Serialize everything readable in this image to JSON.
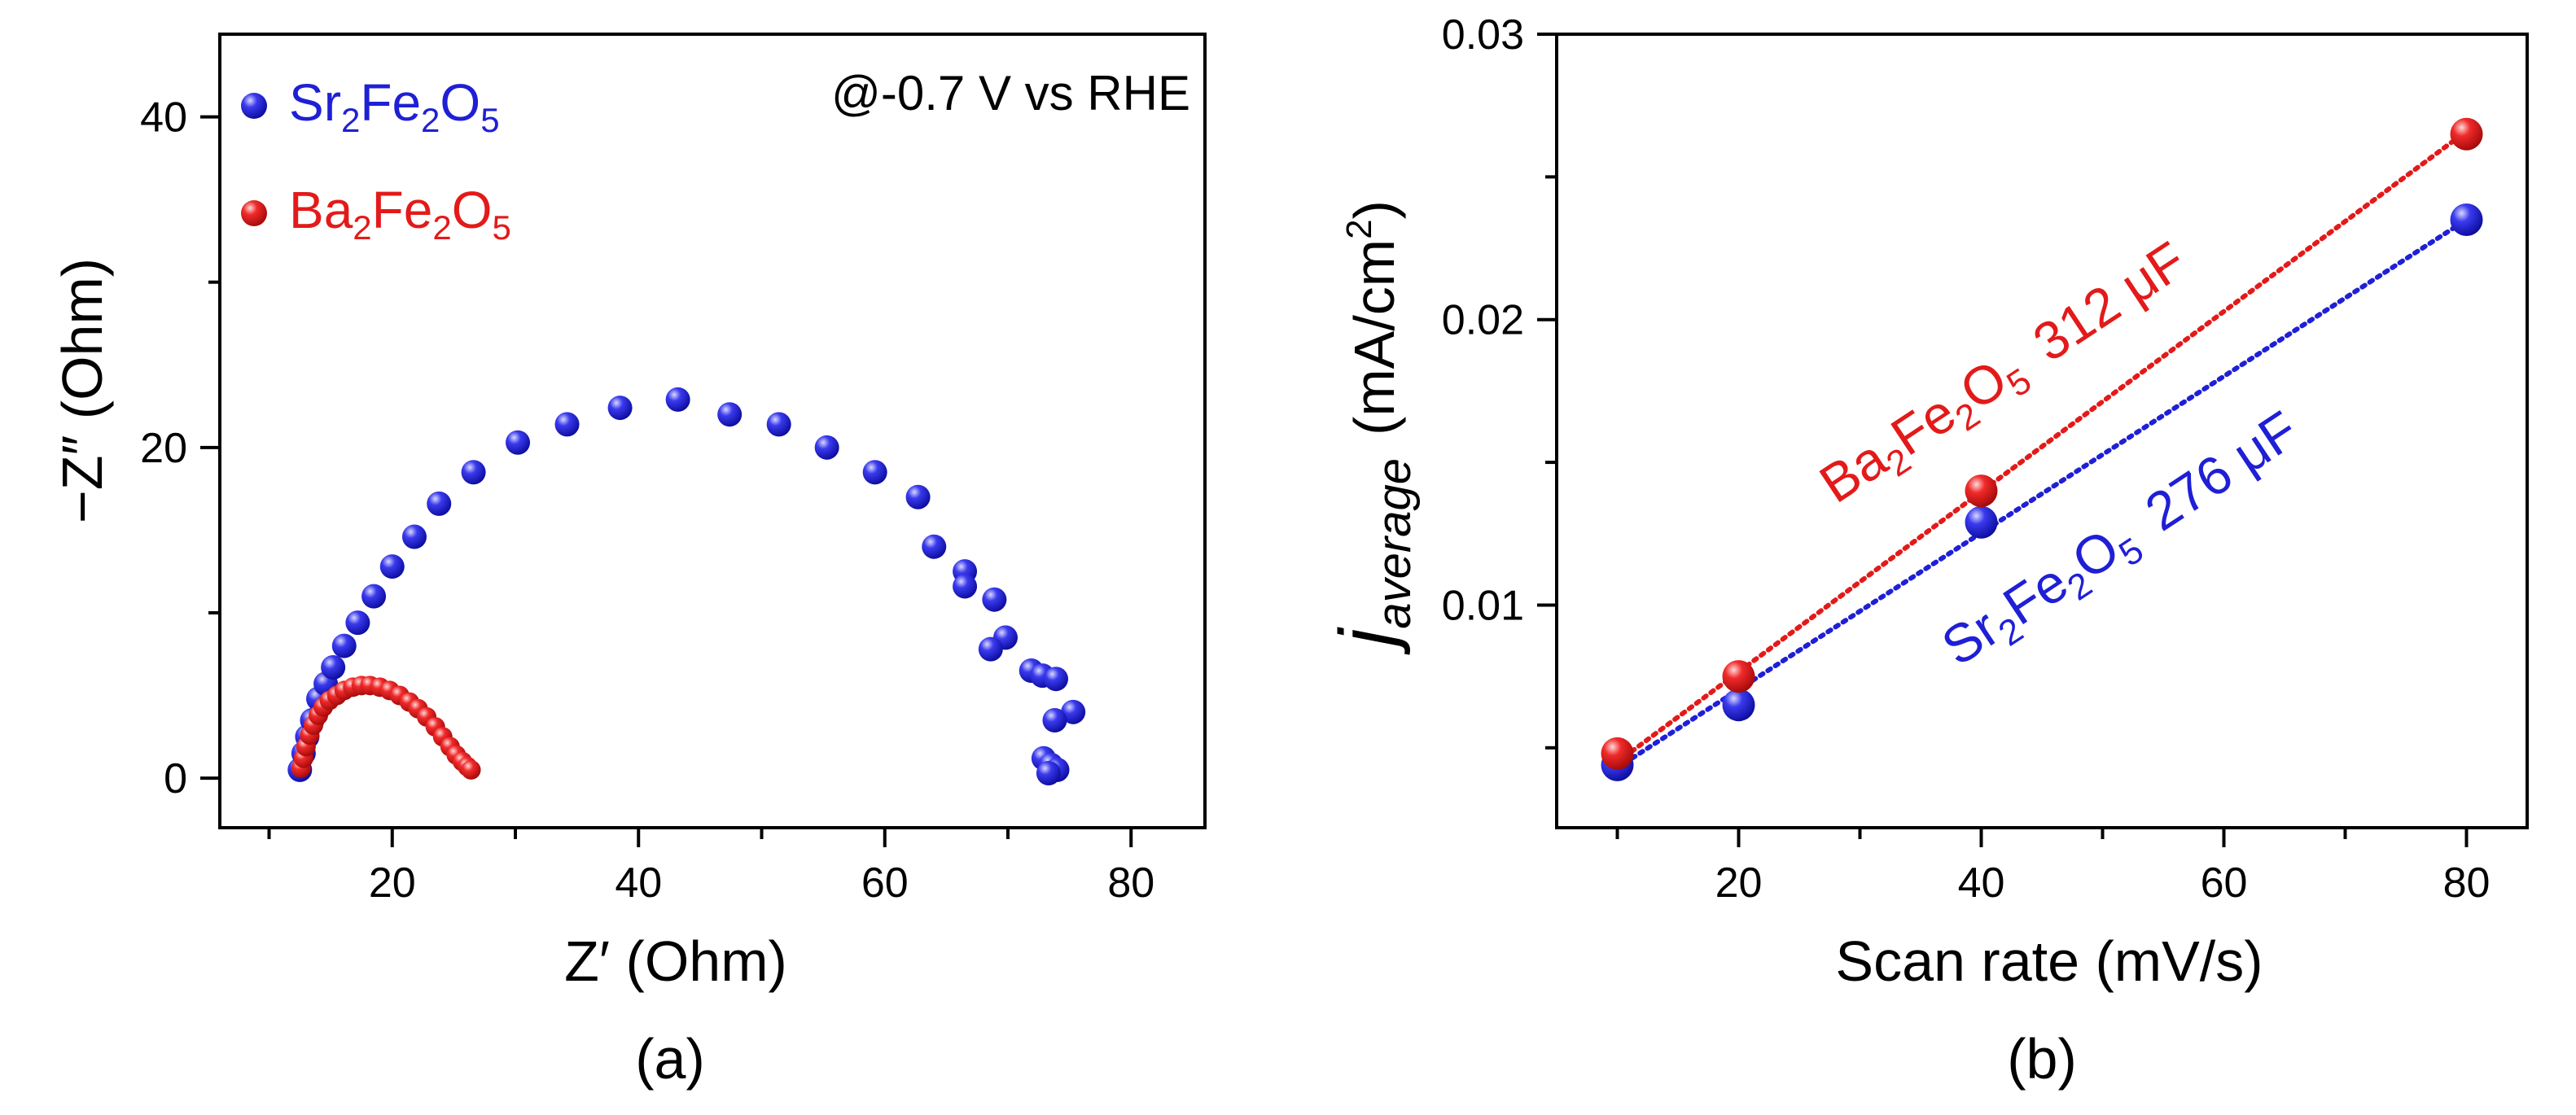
{
  "chart_data": [
    {
      "type": "scatter",
      "panel_label": "(a)",
      "annotation": "@-0.7 V vs RHE",
      "xlabel": "Z′ (Ohm)",
      "ylabel": "−Z″ (Ohm)",
      "xlim": [
        6,
        86
      ],
      "ylim": [
        -3,
        45
      ],
      "xticks": [
        20,
        40,
        60,
        80
      ],
      "yticks": [
        0,
        20,
        40
      ],
      "legend": [
        {
          "base": "Sr",
          "sub1": "2",
          "mid1": "Fe",
          "sub2": "2",
          "mid2": "O",
          "sub3": "5",
          "color": "#1f1fd6"
        },
        {
          "base": "Ba",
          "sub1": "2",
          "mid1": "Fe",
          "sub2": "2",
          "mid2": "O",
          "sub3": "5",
          "color": "#e31a1a"
        }
      ],
      "series": [
        {
          "name": "Sr2Fe2O5",
          "color": "#1f1fd6",
          "x": [
            12.5,
            12.8,
            13.1,
            13.5,
            14.0,
            14.6,
            15.2,
            16.1,
            17.2,
            18.5,
            20.0,
            21.8,
            23.8,
            26.6,
            30.2,
            34.2,
            38.5,
            43.2,
            47.4,
            51.4,
            55.3,
            59.2,
            62.7,
            64.0,
            66.5,
            66.5,
            68.9,
            69.8,
            68.6,
            71.9,
            72.8,
            73.9,
            75.3,
            73.8,
            72.9,
            73.5,
            74.0,
            73.3
          ],
          "y": [
            0.5,
            1.5,
            2.5,
            3.5,
            4.8,
            5.7,
            6.7,
            8.0,
            9.4,
            11.0,
            12.8,
            14.6,
            16.6,
            18.5,
            20.3,
            21.4,
            22.4,
            22.9,
            22.0,
            21.4,
            20.0,
            18.5,
            17.0,
            14.0,
            12.5,
            11.6,
            10.8,
            8.5,
            7.8,
            6.5,
            6.2,
            6.0,
            4.0,
            3.5,
            1.2,
            0.8,
            0.5,
            0.3
          ]
        },
        {
          "name": "Ba2Fe2O5",
          "color": "#e31a1a",
          "x": [
            12.6,
            12.8,
            13.0,
            13.3,
            13.6,
            14.0,
            14.4,
            14.9,
            15.5,
            16.1,
            16.8,
            17.5,
            18.2,
            19.0,
            19.8,
            20.6,
            21.4,
            22.1,
            22.8,
            23.5,
            24.1,
            24.7,
            25.2,
            25.7,
            26.1,
            26.4
          ],
          "y": [
            0.6,
            1.2,
            1.9,
            2.6,
            3.2,
            3.8,
            4.3,
            4.7,
            5.0,
            5.3,
            5.5,
            5.6,
            5.6,
            5.5,
            5.3,
            5.0,
            4.6,
            4.2,
            3.7,
            3.1,
            2.5,
            1.9,
            1.4,
            1.0,
            0.7,
            0.5
          ]
        }
      ]
    },
    {
      "type": "scatter",
      "panel_label": "(b)",
      "xlabel": "Scan rate (mV/s)",
      "ylabel_main": "j",
      "ylabel_sub": "average",
      "ylabel_unit_a": "(mA/cm",
      "ylabel_unit_sup": "2",
      "ylabel_unit_b": ")",
      "xlim": [
        5,
        85
      ],
      "ylim": [
        0.0022,
        0.03
      ],
      "xticks": [
        20,
        40,
        60,
        80
      ],
      "yticks": [
        0.01,
        0.02,
        0.03
      ],
      "ytick_labels": [
        "0.01",
        "0.02",
        "0.03"
      ],
      "annotations": [
        {
          "formula": [
            "Ba",
            "2",
            "Fe",
            "2",
            "O",
            "5"
          ],
          "value": "312 μF",
          "color": "#e31a1a"
        },
        {
          "formula": [
            "Sr",
            "2",
            "Fe",
            "2",
            "O",
            "5"
          ],
          "value": "276 μF",
          "color": "#1f1fd6"
        }
      ],
      "series": [
        {
          "name": "Sr2Fe2O5",
          "color": "#1f1fd6",
          "x": [
            10,
            20,
            40,
            80
          ],
          "y": [
            0.0044,
            0.0065,
            0.0129,
            0.0235
          ],
          "fit": [
            0.0043,
            0.0235
          ]
        },
        {
          "name": "Ba2Fe2O5",
          "color": "#e31a1a",
          "x": [
            10,
            20,
            40,
            80
          ],
          "y": [
            0.0048,
            0.0075,
            0.014,
            0.0265
          ],
          "fit": [
            0.0045,
            0.0266
          ]
        }
      ]
    }
  ]
}
